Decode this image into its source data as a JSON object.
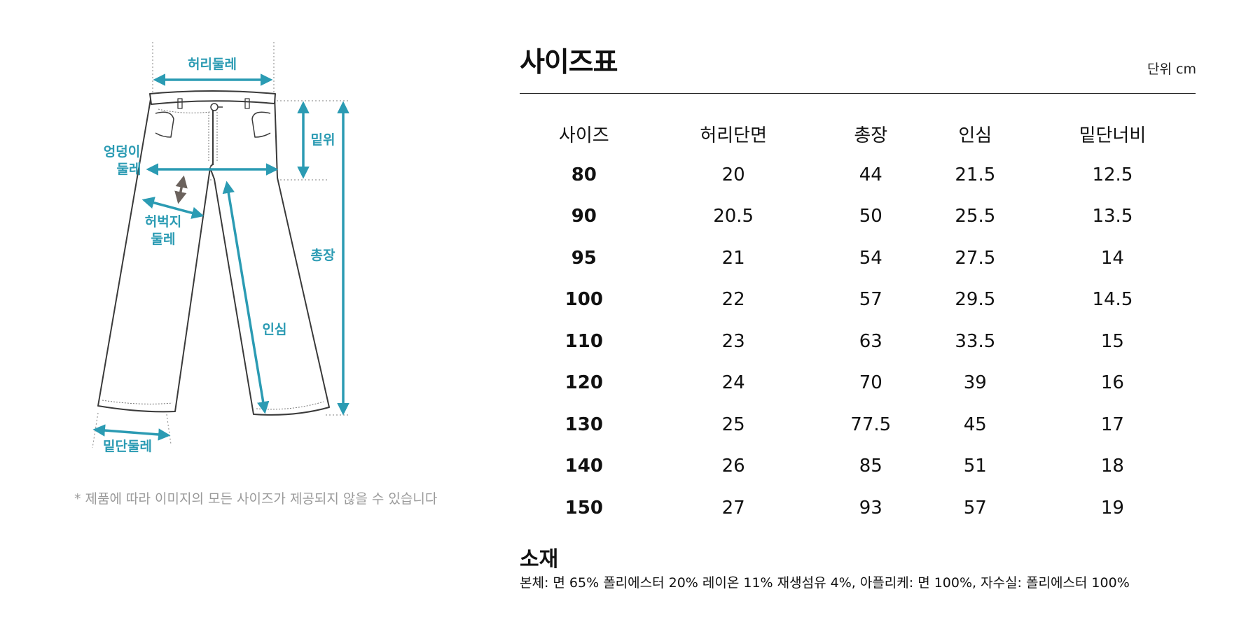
{
  "diagram": {
    "labels": {
      "waist": "허리둘레",
      "rise": "밑위",
      "hip_line1": "엉덩이",
      "hip_line2": "둘레",
      "thigh_line1": "허벅지",
      "thigh_line2": "둘레",
      "total_length": "총장",
      "inseam": "인심",
      "hem": "밑단둘레"
    },
    "accent_color": "#2b9bb3",
    "secondary_arrow_color": "#6b625d"
  },
  "note": "* 제품에 따라 이미지의 모든 사이즈가 제공되지 않을 수 있습니다",
  "header": {
    "title": "사이즈표",
    "unit": "단위 cm"
  },
  "table": {
    "columns": [
      "사이즈",
      "허리단면",
      "총장",
      "인심",
      "밑단너비"
    ],
    "rows": [
      [
        "80",
        "20",
        "44",
        "21.5",
        "12.5"
      ],
      [
        "90",
        "20.5",
        "50",
        "25.5",
        "13.5"
      ],
      [
        "95",
        "21",
        "54",
        "27.5",
        "14"
      ],
      [
        "100",
        "22",
        "57",
        "29.5",
        "14.5"
      ],
      [
        "110",
        "23",
        "63",
        "33.5",
        "15"
      ],
      [
        "120",
        "24",
        "70",
        "39",
        "16"
      ],
      [
        "130",
        "25",
        "77.5",
        "45",
        "17"
      ],
      [
        "140",
        "26",
        "85",
        "51",
        "18"
      ],
      [
        "150",
        "27",
        "93",
        "57",
        "19"
      ]
    ]
  },
  "material": {
    "title": "소재",
    "text": "본체: 면 65% 폴리에스터 20% 레이온 11% 재생섬유 4%, 아플리케: 면 100%, 자수실: 폴리에스터 100%"
  }
}
